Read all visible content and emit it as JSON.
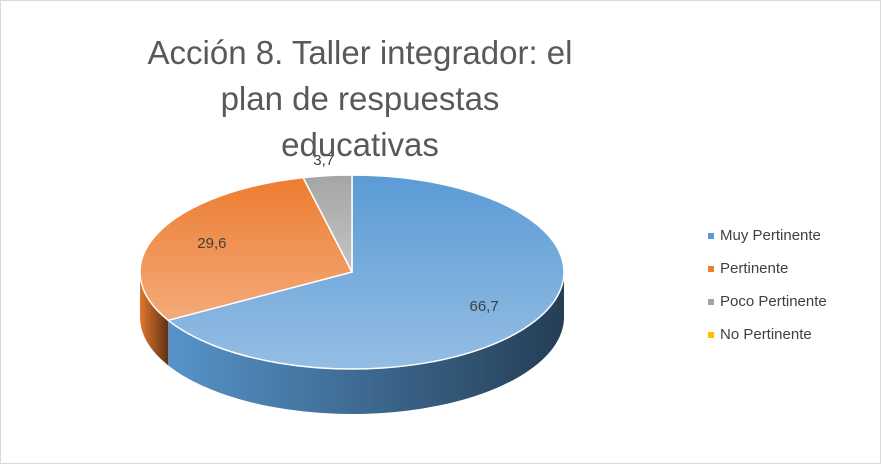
{
  "chart_data": {
    "type": "pie3d",
    "title": "Acción 8. Taller integrador: el plan de respuestas educativas",
    "categories": [
      "Muy Pertinente",
      "Pertinente",
      "Poco Pertinente",
      "No Pertinente"
    ],
    "values": [
      66.7,
      29.6,
      3.7,
      0
    ],
    "value_labels": [
      "66,7",
      "29,6",
      "3,7",
      null
    ],
    "colors": [
      "#5b9bd5",
      "#ed7d31",
      "#a5a5a5",
      "#ffc000"
    ],
    "legend": "right"
  }
}
